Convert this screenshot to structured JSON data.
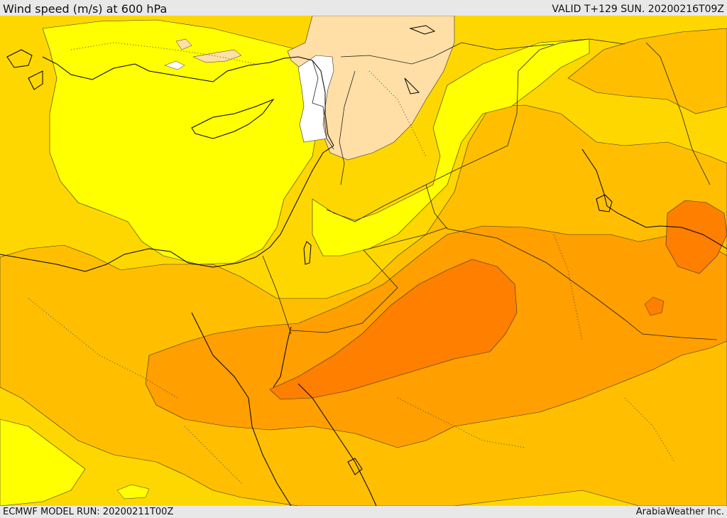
{
  "header": {
    "title": "Wind speed (m/s) at 600 hPa",
    "valid": "VALID T+129 SUN. 20200216T09Z"
  },
  "footer": {
    "model_run": "ECMWF MODEL RUN: 20200211T00Z",
    "credit": "ArabiaWeather Inc."
  },
  "colors": {
    "band_lt6": "#ffffff",
    "band_6_9": "#ffdfa6",
    "band_9_12": "#ffff00",
    "band_12_15": "#ffd700",
    "band_15_18": "#ffbf00",
    "band_18_21": "#ff9f00",
    "band_21_24": "#ff7f00",
    "coastline": "#000000",
    "border": "#222222",
    "chrome_bg": "#e8e8e8"
  }
}
